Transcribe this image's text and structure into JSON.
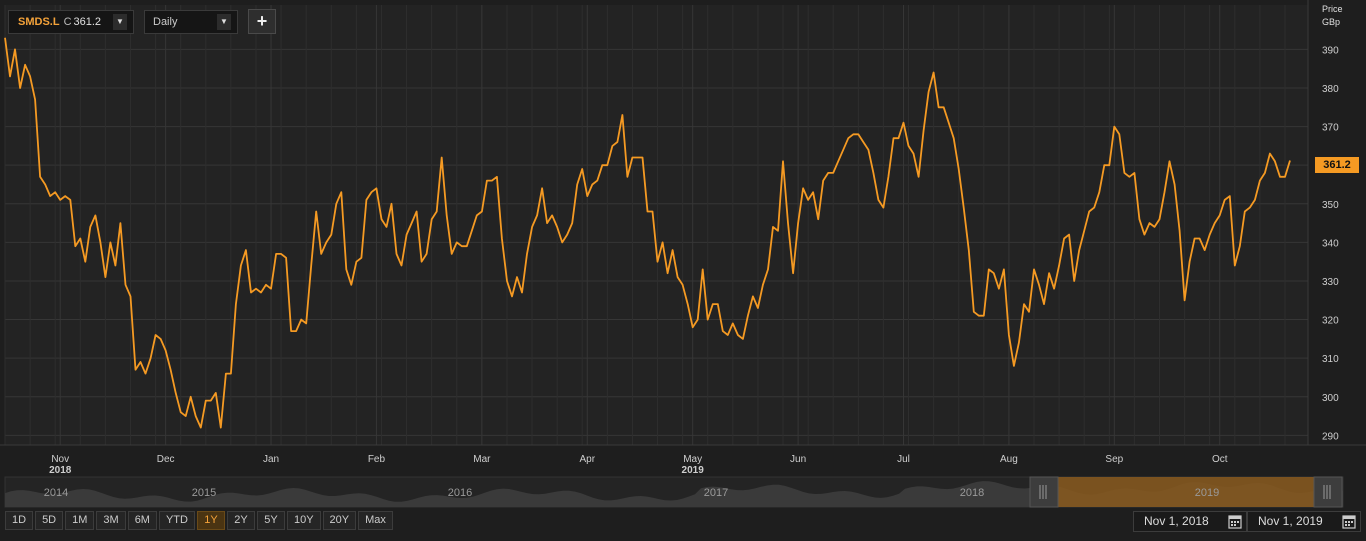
{
  "toolbar": {
    "symbol": "SMDS.L",
    "close_label": "C",
    "close_value": "361.2",
    "interval": "Daily",
    "add_label": "+",
    "dropdown_glyph": "▼"
  },
  "axis": {
    "unit_line1": "Price",
    "unit_line2": "GBp",
    "last_price_tag": "361.2"
  },
  "range_buttons": [
    "1D",
    "5D",
    "1M",
    "3M",
    "6M",
    "YTD",
    "1Y",
    "2Y",
    "5Y",
    "10Y",
    "20Y",
    "Max"
  ],
  "active_range": "1Y",
  "date_range": {
    "start": "Nov 1, 2018",
    "end": "Nov 1, 2019"
  },
  "colors": {
    "line": "#f59a23",
    "accent": "#f5a33a",
    "background": "#1e1e1e",
    "grid": "#363636"
  },
  "chart_data": {
    "type": "line",
    "series": [
      {
        "values": [
          393,
          383,
          390,
          380,
          386,
          383,
          377,
          357,
          355,
          352,
          353,
          351,
          352,
          351,
          339,
          341,
          335,
          344,
          347,
          340,
          331,
          340,
          334,
          345,
          329,
          326,
          307,
          309,
          306,
          310,
          316,
          315,
          312,
          307,
          301,
          296,
          295,
          300,
          295,
          292,
          299,
          299,
          301,
          292,
          306,
          306,
          324,
          334,
          338,
          327,
          328,
          327,
          329,
          328,
          337,
          337,
          336,
          317,
          317,
          320,
          319,
          334,
          348,
          337,
          340,
          342,
          350,
          353,
          333,
          329,
          335,
          336,
          351,
          353,
          354,
          346,
          344,
          350,
          337,
          334,
          342,
          345,
          348,
          335,
          337,
          346,
          348,
          362,
          347,
          337,
          340,
          339,
          339,
          343,
          347,
          348,
          356,
          356,
          357,
          341,
          330,
          326,
          331,
          327,
          337,
          344,
          347,
          354,
          345,
          347,
          344,
          340,
          342,
          345,
          355,
          359,
          352,
          355,
          356,
          360,
          360,
          365,
          366,
          373,
          357,
          362,
          362,
          362,
          348,
          348,
          335,
          340,
          332,
          338,
          331,
          329,
          324,
          318,
          320,
          333,
          320,
          324,
          324,
          317,
          316,
          319,
          316,
          315,
          321,
          326,
          323,
          329,
          333,
          344,
          343,
          361,
          345,
          332,
          345,
          354,
          351,
          353,
          346,
          356,
          358,
          358,
          361,
          364,
          367,
          368,
          368,
          366,
          364,
          358,
          351,
          349,
          357,
          367,
          367,
          371,
          365,
          363,
          357,
          369,
          379,
          384,
          375,
          375,
          371,
          367,
          359,
          349,
          338,
          322,
          321,
          321,
          333,
          332,
          328,
          333,
          316,
          308,
          314,
          324,
          322,
          333,
          329,
          324,
          332,
          328,
          334,
          341,
          342,
          330,
          338,
          343,
          348,
          349,
          353,
          360,
          360,
          370,
          368,
          358,
          357,
          358,
          346,
          342,
          345,
          344,
          346,
          353,
          361,
          355,
          343,
          325,
          335,
          341,
          341,
          338,
          342,
          345,
          347,
          351,
          352,
          334,
          339,
          348,
          349,
          351,
          356,
          358,
          363,
          361,
          357,
          357,
          361.2
        ]
      }
    ],
    "x_ticks": [
      {
        "label": "Nov",
        "i": 11,
        "year": "2018"
      },
      {
        "label": "Dec",
        "i": 32
      },
      {
        "label": "Jan",
        "i": 53
      },
      {
        "label": "Feb",
        "i": 74
      },
      {
        "label": "Mar",
        "i": 95
      },
      {
        "label": "Apr",
        "i": 116
      },
      {
        "label": "May",
        "i": 137,
        "year": "2019"
      },
      {
        "label": "Jun",
        "i": 158
      },
      {
        "label": "Jul",
        "i": 179
      },
      {
        "label": "Aug",
        "i": 200
      },
      {
        "label": "Sep",
        "i": 221
      },
      {
        "label": "Oct",
        "i": 242
      }
    ],
    "y_ticks": [
      290,
      300,
      310,
      320,
      330,
      340,
      350,
      360,
      370,
      380,
      390
    ],
    "ylim": [
      287.5,
      401.5
    ],
    "navigator_years": [
      "2014",
      "2015",
      "2016",
      "2017",
      "2018",
      "2019"
    ],
    "grid": true,
    "price_axis": "right"
  }
}
